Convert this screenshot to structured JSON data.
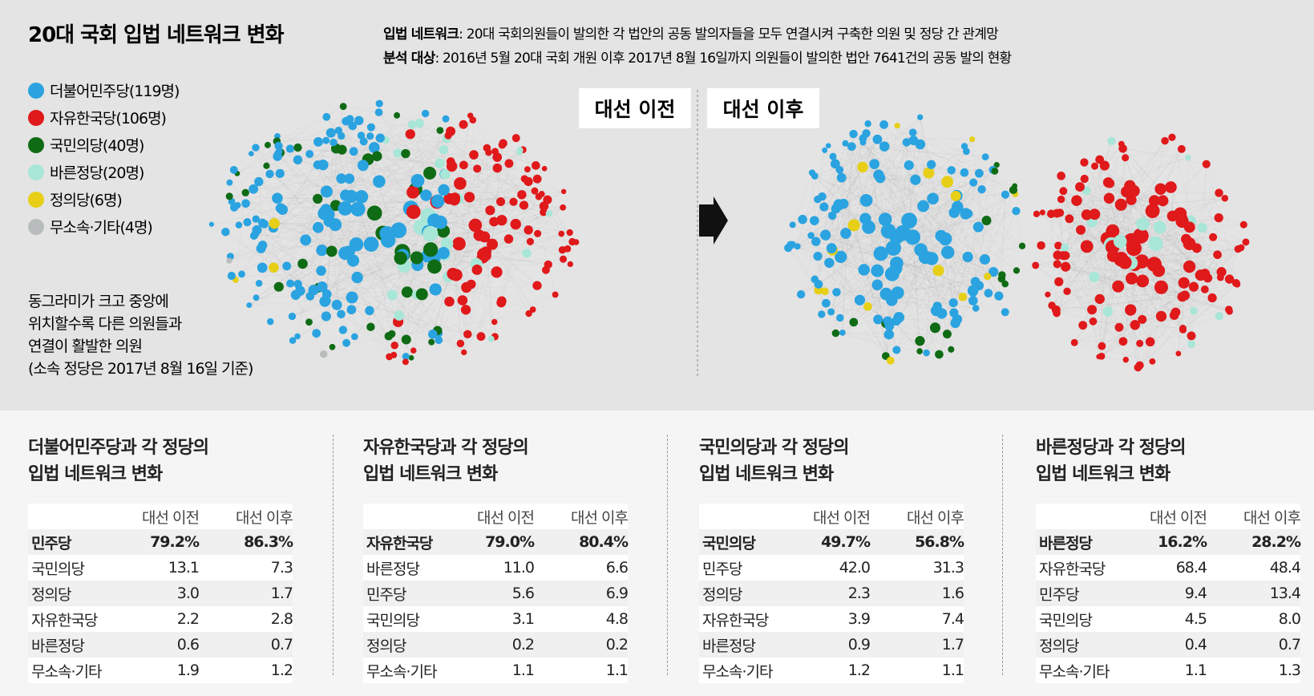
{
  "header": {
    "title": "20대 국회 입법 네트워크 변화",
    "desc": [
      {
        "label": "입법 네트워크",
        "text": ": 20대 국회의원들이 발의한 각 법안의 공동 발의자들을  모두 연결시켜 구축한 의원 및 정당 간 관계망"
      },
      {
        "label": "분석 대상",
        "text": ": 2016년 5월 20대 국회 개원 이후 2017년 8월 16일까지 의원들이 발의한 법안 7641건의 공동 발의 현황"
      }
    ]
  },
  "legend": [
    {
      "name": "더불어민주당(119명)",
      "color": "#2aa3e0"
    },
    {
      "name": "자유한국당(106명)",
      "color": "#e0191b"
    },
    {
      "name": "국민의당(40명)",
      "color": "#0f6b14"
    },
    {
      "name": "바른정당(20명)",
      "color": "#a8e6d8"
    },
    {
      "name": "정의당(6명)",
      "color": "#e6cf16"
    },
    {
      "name": "무소속·기타(4명)",
      "color": "#b9bcbc"
    }
  ],
  "note": [
    "동그라미가 크고 중앙에",
    "위치할수록 다른 의원들과",
    "연결이 활발한 의원",
    "(소속 정당은 2017년 8월 16일 기준)"
  ],
  "panels": [
    "대선 이전",
    "대선 이후"
  ],
  "tables": [
    {
      "title": [
        "더불어민주당과 각 정당의",
        "입법 네트워크 변화"
      ],
      "columns": [
        "대선 이전",
        "대선 이후"
      ],
      "rows": [
        [
          "민주당",
          "79.2%",
          "86.3%"
        ],
        [
          "국민의당",
          "13.1",
          "7.3"
        ],
        [
          "정의당",
          "3.0",
          "1.7"
        ],
        [
          "자유한국당",
          "2.2",
          "2.8"
        ],
        [
          "바른정당",
          "0.6",
          "0.7"
        ],
        [
          "무소속·기타",
          "1.9",
          "1.2"
        ]
      ]
    },
    {
      "title": [
        "자유한국당과 각 정당의",
        "입법 네트워크 변화"
      ],
      "columns": [
        "대선 이전",
        "대선 이후"
      ],
      "rows": [
        [
          "자유한국당",
          "79.0%",
          "80.4%"
        ],
        [
          "바른정당",
          "11.0",
          "6.6"
        ],
        [
          "민주당",
          "5.6",
          "6.9"
        ],
        [
          "국민의당",
          "3.1",
          "4.8"
        ],
        [
          "정의당",
          "0.2",
          "0.2"
        ],
        [
          "무소속·기타",
          "1.1",
          "1.1"
        ]
      ]
    },
    {
      "title": [
        "국민의당과 각 정당의",
        "입법 네트워크 변화"
      ],
      "columns": [
        "대선 이전",
        "대선 이후"
      ],
      "rows": [
        [
          "국민의당",
          "49.7%",
          "56.8%"
        ],
        [
          "민주당",
          "42.0",
          "31.3"
        ],
        [
          "정의당",
          "2.3",
          "1.6"
        ],
        [
          "자유한국당",
          "3.9",
          "7.4"
        ],
        [
          "바른정당",
          "0.9",
          "1.7"
        ],
        [
          "무소속·기타",
          "1.2",
          "1.1"
        ]
      ]
    },
    {
      "title": [
        "바른정당과 각 정당의",
        "입법 네트워크 변화"
      ],
      "columns": [
        "대선 이전",
        "대선 이후"
      ],
      "rows": [
        [
          "바른정당",
          "16.2%",
          "28.2%"
        ],
        [
          "자유한국당",
          "68.4",
          "48.4"
        ],
        [
          "민주당",
          "9.4",
          "13.4"
        ],
        [
          "국민의당",
          "4.5",
          "8.0"
        ],
        [
          "정의당",
          "0.4",
          "0.7"
        ],
        [
          "무소속·기타",
          "1.1",
          "1.3"
        ]
      ]
    }
  ]
}
